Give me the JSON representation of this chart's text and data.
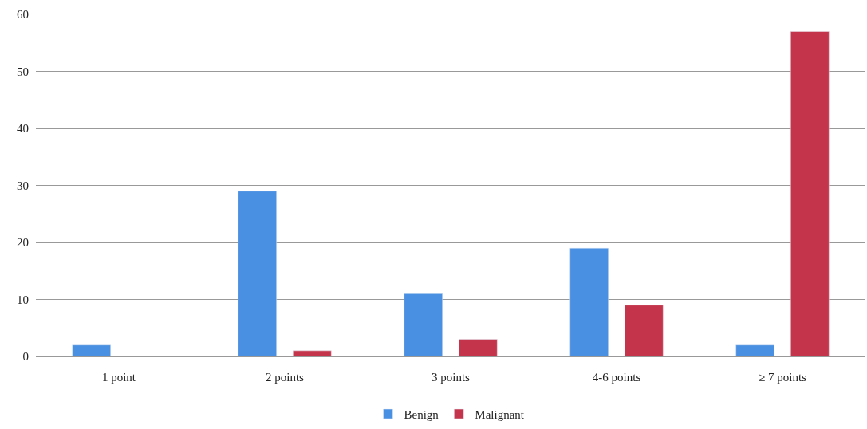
{
  "chart_data": {
    "type": "bar",
    "categories": [
      "1 point",
      "2 points",
      "3 points",
      "4-6 points",
      "≥ 7 points"
    ],
    "series": [
      {
        "name": "Benign",
        "color": "#4a90e2",
        "values": [
          2,
          29,
          11,
          19,
          2
        ]
      },
      {
        "name": "Malignant",
        "color": "#c4344a",
        "values": [
          null,
          1,
          3,
          9,
          57
        ]
      }
    ],
    "ylim": [
      0,
      60
    ],
    "yticks": [
      0,
      10,
      20,
      30,
      40,
      50,
      60
    ],
    "grid": "y",
    "legend": "bottom"
  }
}
